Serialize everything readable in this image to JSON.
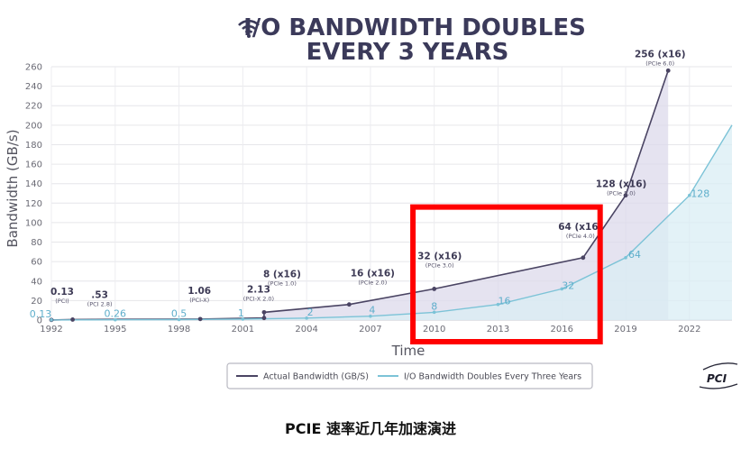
{
  "title_lines": [
    "I/O BANDWIDTH DOUBLES",
    "EVERY 3 YEARS"
  ],
  "caption": "PCIE 速率近几年加速演进",
  "logo_text": "PCI",
  "colors": {
    "actual": "#4a4463",
    "actual_fill": "#dcdaeb",
    "double": "#7cc3d7",
    "double_fill": "#d9eef4",
    "highlight": "#ff0000",
    "title": "#3b3a5a"
  },
  "chart_data": {
    "type": "area",
    "title": "I/O BANDWIDTH DOUBLES EVERY 3 YEARS",
    "xlabel": "Time",
    "ylabel": "Bandwidth (GB/s)",
    "xlim": [
      1992,
      2024
    ],
    "ylim": [
      0,
      260
    ],
    "x_ticks": [
      1992,
      1995,
      1998,
      2001,
      2004,
      2007,
      2010,
      2013,
      2016,
      2019,
      2022
    ],
    "y_ticks": [
      0,
      20,
      40,
      60,
      80,
      100,
      120,
      140,
      160,
      180,
      200,
      220,
      240,
      260
    ],
    "grid": true,
    "legend_position": "bottom",
    "series": [
      {
        "name": "Actual Bandwidth (GB/S)",
        "points": [
          {
            "x": 1992,
            "y": 0.13,
            "label": "0.13",
            "sublabel": "(PCI)"
          },
          {
            "x": 1993,
            "y": 0.53,
            "label": ".53",
            "sublabel": "(PCI 2.8)"
          },
          {
            "x": 1999,
            "y": 1.06,
            "label": "1.06",
            "sublabel": "(PCI-X)"
          },
          {
            "x": 2002,
            "y": 2.13,
            "label": "2.13",
            "sublabel": "(PCI-X 2.0)"
          },
          {
            "x": 2002,
            "y": 8,
            "label": "8 (x16)",
            "sublabel": "(PCIe 1.0)"
          },
          {
            "x": 2006,
            "y": 16,
            "label": "16 (x16)",
            "sublabel": "(PCIe 2.0)"
          },
          {
            "x": 2010,
            "y": 32,
            "label": "32 (x16)",
            "sublabel": "(PCIe 3.0)"
          },
          {
            "x": 2017,
            "y": 64,
            "label": "64 (x16)",
            "sublabel": "(PCIe 4.0)"
          },
          {
            "x": 2019,
            "y": 128,
            "label": "128 (x16)",
            "sublabel": "(PCIe 5.0)"
          },
          {
            "x": 2021,
            "y": 256,
            "label": "256 (x16)",
            "sublabel": "(PCIe 6.0)"
          }
        ]
      },
      {
        "name": "I/O Bandwidth Doubles Every Three Years",
        "points": [
          {
            "x": 1992,
            "y": 0.13,
            "label": "0.13"
          },
          {
            "x": 1995,
            "y": 0.26,
            "label": "0.26"
          },
          {
            "x": 1998,
            "y": 0.5,
            "label": "0.5"
          },
          {
            "x": 2001,
            "y": 1,
            "label": "1"
          },
          {
            "x": 2004,
            "y": 2,
            "label": "2"
          },
          {
            "x": 2007,
            "y": 4,
            "label": "4"
          },
          {
            "x": 2010,
            "y": 8,
            "label": "8"
          },
          {
            "x": 2013,
            "y": 16,
            "label": "16"
          },
          {
            "x": 2016,
            "y": 32,
            "label": "32"
          },
          {
            "x": 2019,
            "y": 64,
            "label": "64"
          },
          {
            "x": 2022,
            "y": 128,
            "label": "128"
          },
          {
            "x": 2024,
            "y": 200,
            "label": ""
          }
        ]
      }
    ],
    "highlight_region": {
      "x_from": 2009,
      "x_to": 2017.8,
      "y_from": 0,
      "y_to": 116
    }
  }
}
